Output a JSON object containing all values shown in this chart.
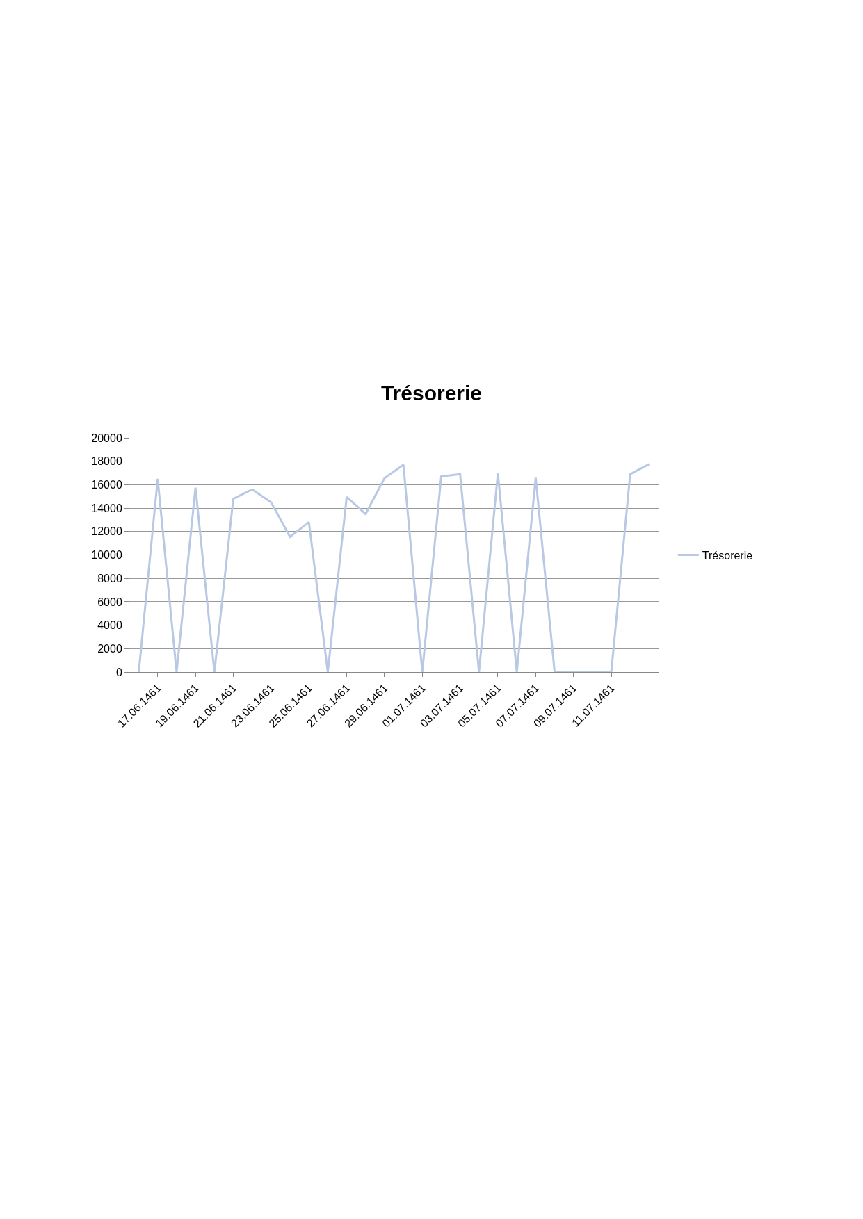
{
  "chart_data": {
    "type": "line",
    "title": "Trésorerie",
    "categories": [
      null,
      "17.06.1461",
      null,
      "19.06.1461",
      null,
      "21.06.1461",
      null,
      "23.06.1461",
      null,
      "25.06.1461",
      null,
      "27.06.1461",
      null,
      "29.06.1461",
      null,
      "01.07.1461",
      null,
      "03.07.1461",
      null,
      "05.07.1461",
      null,
      "07.07.1461",
      null,
      "09.07.1461",
      null,
      "11.07.1461",
      null,
      null
    ],
    "series": [
      {
        "name": "Trésorerie",
        "color": "#b9c9e3",
        "values": [
          0,
          16500,
          0,
          15750,
          0,
          14800,
          15600,
          14500,
          11550,
          12800,
          0,
          14950,
          13500,
          16550,
          17700,
          0,
          16700,
          16900,
          0,
          17000,
          0,
          16600,
          0,
          0,
          0,
          0,
          16900,
          17750
        ]
      }
    ],
    "ylim": [
      0,
      20000
    ],
    "yticks": [
      0,
      2000,
      4000,
      6000,
      8000,
      10000,
      12000,
      14000,
      16000,
      18000,
      20000
    ],
    "grid": "y",
    "legend": "right",
    "marker": "none",
    "line_style": "solid"
  }
}
